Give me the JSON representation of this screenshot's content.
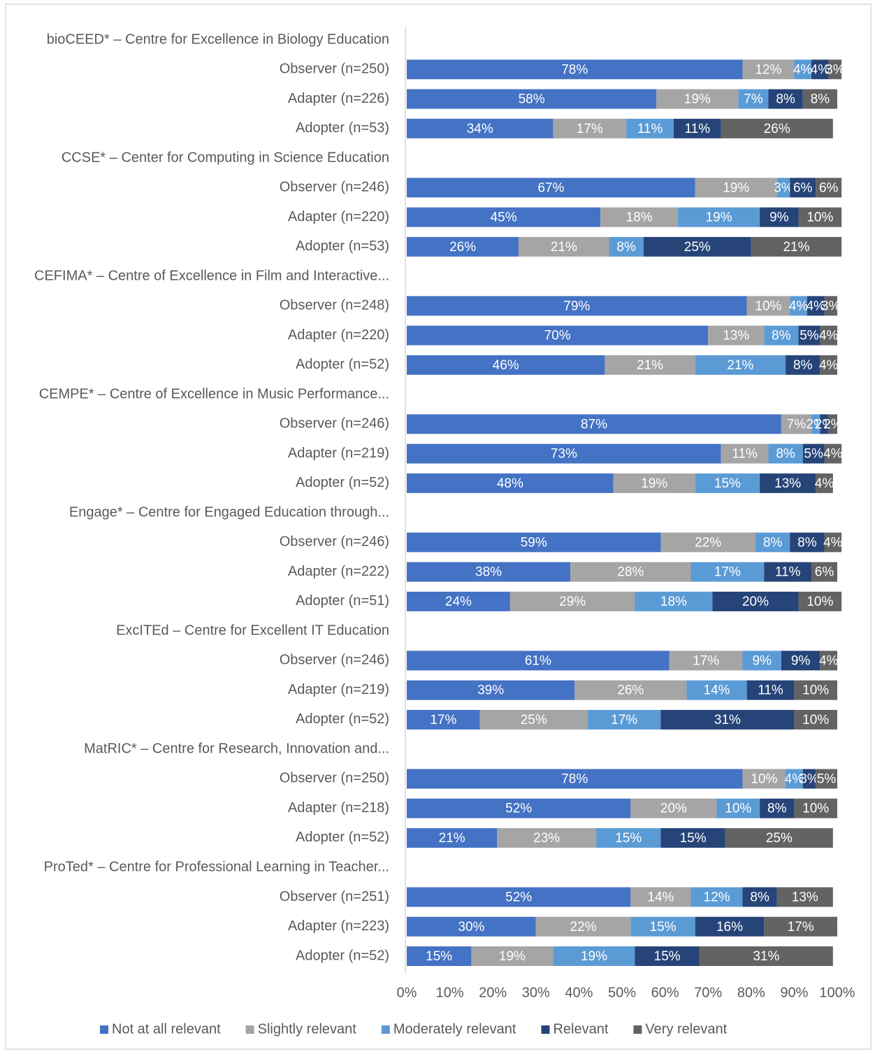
{
  "chart_data": {
    "type": "stacked_bar_horizontal",
    "categories": [
      "bioCEED* – Centre for Excellence in Biology Education",
      "Observer (n=250)",
      "Adapter (n=226)",
      "Adopter (n=53)",
      "CCSE* – Center for Computing in Science Education",
      "Observer (n=246)",
      "Adapter (n=220)",
      "Adopter (n=53)",
      "CEFIMA* – Centre of Excellence in Film and Interactive...",
      "Observer (n=248)",
      "Adapter (n=220)",
      "Adopter (n=52)",
      "CEMPE* – Centre of Excellence in Music Performance...",
      "Observer (n=246)",
      "Adapter (n=219)",
      "Adopter (n=52)",
      "Engage* – Centre for Engaged Education through...",
      "Observer (n=246)",
      "Adapter (n=222)",
      "Adopter (n=51)",
      "ExcITEd – Centre for Excellent  IT Education",
      "Observer (n=246)",
      "Adapter (n=219)",
      "Adopter (n=52)",
      "MatRIC* – Centre for Research, Innovation and...",
      "Observer (n=250)",
      "Adapter (n=218)",
      "Adopter (n=52)",
      "ProTed* – Centre for Professional Learning in Teacher...",
      "Observer (n=251)",
      "Adapter (n=223)",
      "Adopter (n=52)"
    ],
    "series": [
      {
        "name": "Not at all relevant",
        "color": "#4472c4",
        "values": [
          null,
          78,
          58,
          34,
          null,
          67,
          45,
          26,
          null,
          79,
          70,
          46,
          null,
          87,
          73,
          48,
          null,
          59,
          38,
          24,
          null,
          61,
          39,
          17,
          null,
          78,
          52,
          21,
          null,
          52,
          30,
          15
        ],
        "value_labels": [
          null,
          "78%",
          "58%",
          "34%",
          null,
          "67%",
          "45%",
          "26%",
          null,
          "79%",
          "70%",
          "46%",
          null,
          "87%",
          "73%",
          "48%",
          null,
          "59%",
          "38%",
          "24%",
          null,
          "61%",
          "39%",
          "17%",
          null,
          "78%",
          "52%",
          "21%",
          null,
          "52%",
          "30%",
          "15%"
        ]
      },
      {
        "name": "Slightly relevant",
        "color": "#a5a5a5",
        "values": [
          null,
          12,
          19,
          17,
          null,
          19,
          18,
          21,
          null,
          10,
          13,
          21,
          null,
          7,
          11,
          19,
          null,
          22,
          28,
          29,
          null,
          17,
          26,
          25,
          null,
          10,
          20,
          23,
          null,
          14,
          22,
          19
        ],
        "value_labels": [
          null,
          "12%",
          "19%",
          "17%",
          null,
          "19%",
          "18%",
          "21%",
          null,
          "10%",
          "13%",
          "21%",
          null,
          "7%",
          "11%",
          "19%",
          null,
          "22%",
          "28%",
          "29%",
          null,
          "17%",
          "26%",
          "25%",
          null,
          "10%",
          "20%",
          "23%",
          null,
          "14%",
          "22%",
          "19%"
        ]
      },
      {
        "name": "Moderately relevant",
        "color": "#5b9bd5",
        "values": [
          null,
          4,
          7,
          11,
          null,
          3,
          19,
          8,
          null,
          4,
          8,
          21,
          null,
          2,
          8,
          15,
          null,
          8,
          17,
          18,
          null,
          9,
          14,
          17,
          null,
          4,
          10,
          15,
          null,
          12,
          15,
          19
        ],
        "value_labels": [
          null,
          "4%",
          "7%",
          "11%",
          null,
          "3%",
          "19%",
          "8%",
          null,
          "4%",
          "8%",
          "21%",
          null,
          "2%",
          "8%",
          "15%",
          null,
          "8%",
          "17%",
          "18%",
          null,
          "9%",
          "14%",
          "17%",
          null,
          "4%",
          "10%",
          "15%",
          null,
          "12%",
          "15%",
          "19%"
        ]
      },
      {
        "name": "Relevant",
        "color": "#264478",
        "values": [
          null,
          4,
          8,
          11,
          null,
          6,
          9,
          25,
          null,
          4,
          5,
          8,
          null,
          2,
          5,
          13,
          null,
          8,
          11,
          20,
          null,
          9,
          11,
          31,
          null,
          3,
          8,
          15,
          null,
          8,
          16,
          15
        ],
        "value_labels": [
          null,
          "4%",
          "8%",
          "11%",
          null,
          "6%",
          "9%",
          "25%",
          null,
          "4%",
          "5%",
          "8%",
          null,
          "2%",
          "5%",
          "13%",
          null,
          "8%",
          "11%",
          "20%",
          null,
          "9%",
          "11%",
          "31%",
          null,
          "3%",
          "8%",
          "15%",
          null,
          "8%",
          "16%",
          "15%"
        ]
      },
      {
        "name": "Very relevant",
        "color": "#636363",
        "values": [
          null,
          3,
          8,
          26,
          null,
          6,
          10,
          21,
          null,
          3,
          4,
          4,
          null,
          2,
          4,
          4,
          null,
          4,
          6,
          10,
          null,
          4,
          10,
          10,
          null,
          5,
          10,
          25,
          null,
          13,
          17,
          31
        ],
        "value_labels": [
          null,
          "3%",
          "8%",
          "26%",
          null,
          "6%",
          "10%",
          "21%",
          null,
          "3%",
          "4%",
          "4%",
          null,
          "2%",
          "4%",
          "4%",
          null,
          "4%",
          "6%",
          "10%",
          null,
          "4%",
          "10%",
          "10%",
          null,
          "5%",
          "10%",
          "25%",
          null,
          "13%",
          "17%",
          "31%"
        ]
      }
    ],
    "xlim": [
      0,
      100
    ],
    "xticks": [
      {
        "value": 0,
        "label": "0%"
      },
      {
        "value": 10,
        "label": "10%"
      },
      {
        "value": 20,
        "label": "20%"
      },
      {
        "value": 30,
        "label": "30%"
      },
      {
        "value": 40,
        "label": "40%"
      },
      {
        "value": 50,
        "label": "50%"
      },
      {
        "value": 60,
        "label": "60%"
      },
      {
        "value": 70,
        "label": "70%"
      },
      {
        "value": 80,
        "label": "80%"
      },
      {
        "value": 90,
        "label": "90%"
      },
      {
        "value": 100,
        "label": "100%"
      }
    ],
    "grid": false,
    "legend": "bottom"
  }
}
